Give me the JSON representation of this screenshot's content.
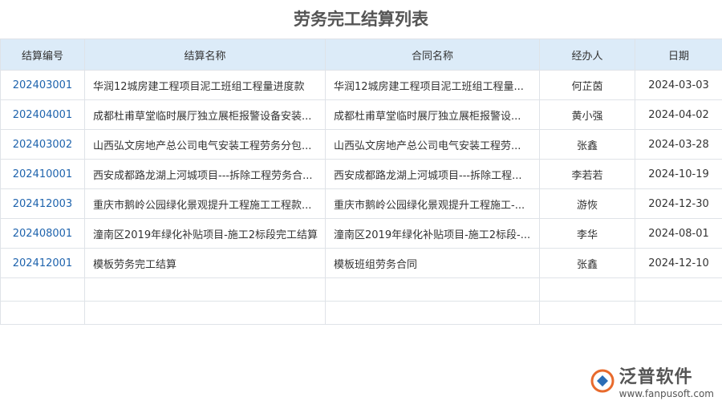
{
  "header": {
    "title": "劳务完工结算列表"
  },
  "table": {
    "columns": [
      "结算编号",
      "结算名称",
      "合同名称",
      "经办人",
      "日期"
    ],
    "rows": [
      [
        "202403001",
        "华润12城房建工程项目泥工班组工程量进度款",
        "华润12城房建工程项目泥工班组工程量...",
        "何芷茵",
        "2024-03-03"
      ],
      [
        "202404001",
        "成都杜甫草堂临时展厅独立展柜报警设备安装...",
        "成都杜甫草堂临时展厅独立展柜报警设...",
        "黄小强",
        "2024-04-02"
      ],
      [
        "202403002",
        "山西弘文房地产总公司电气安装工程劳务分包...",
        "山西弘文房地产总公司电气安装工程劳...",
        "张鑫",
        "2024-03-28"
      ],
      [
        "202410001",
        "西安成都路龙湖上河城项目---拆除工程劳务合...",
        "西安成都路龙湖上河城项目---拆除工程...",
        "李若若",
        "2024-10-19"
      ],
      [
        "202412003",
        "重庆市鹅岭公园绿化景观提升工程施工工程款...",
        "重庆市鹅岭公园绿化景观提升工程施工-...",
        "游恢",
        "2024-12-30"
      ],
      [
        "202408001",
        "潼南区2019年绿化补贴项目-施工2标段完工结算",
        "潼南区2019年绿化补贴项目-施工2标段-...",
        "李华",
        "2024-08-01"
      ],
      [
        "202412001",
        "模板劳务完工结算",
        "模板班组劳务合同",
        "张鑫",
        "2024-12-10"
      ]
    ]
  },
  "logo": {
    "name": "泛普软件",
    "url": "www.fanpusoft.com"
  }
}
